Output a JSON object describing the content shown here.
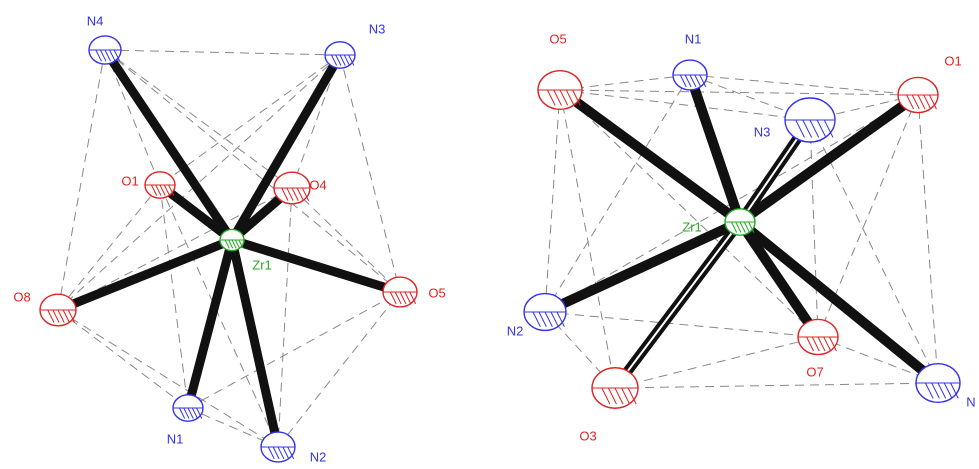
{
  "left": {
    "atoms": [
      {
        "label": "N4"
      },
      {
        "label": "N3"
      },
      {
        "label": "O1"
      },
      {
        "label": "O4"
      },
      {
        "label": "Zr1"
      },
      {
        "label": "O8"
      },
      {
        "label": "O5"
      },
      {
        "label": "N1"
      },
      {
        "label": "N2"
      }
    ]
  },
  "right": {
    "atoms": [
      {
        "label": "O5"
      },
      {
        "label": "N1"
      },
      {
        "label": "O1"
      },
      {
        "label": "N3"
      },
      {
        "label": "Zr1"
      },
      {
        "label": "N2"
      },
      {
        "label": "O3"
      },
      {
        "label": "O7"
      },
      {
        "label": "N"
      }
    ]
  }
}
